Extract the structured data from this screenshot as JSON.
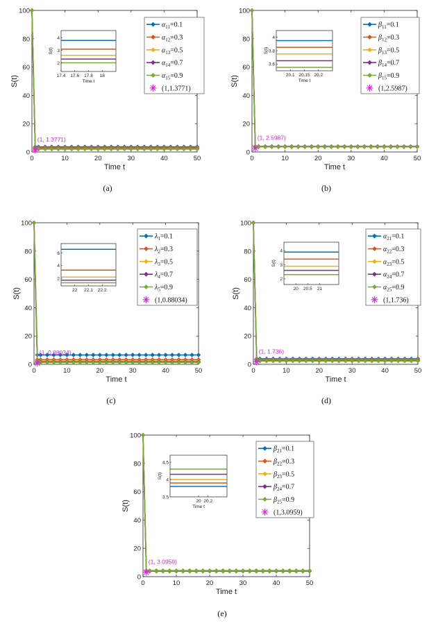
{
  "colors": {
    "s1": "#0072BD",
    "s2": "#D95319",
    "s3": "#EDB120",
    "s4": "#7E2F8E",
    "s5": "#77AC30",
    "marker": "#E020E0"
  },
  "chart_data": [
    {
      "type": "line",
      "caption": "(a)",
      "xlabel": "Time t",
      "ylabel": "S(t)",
      "xlim": [
        0,
        50
      ],
      "ylim": [
        0,
        100
      ],
      "xticks": [
        0,
        10,
        20,
        30,
        40,
        50
      ],
      "yticks": [
        0,
        20,
        40,
        60,
        80,
        100
      ],
      "series": [
        {
          "sym": "α",
          "sub": "11",
          "val": "=0.1",
          "final": 3.6
        },
        {
          "sym": "α",
          "sub": "12",
          "val": "=0.3",
          "final": 3.0
        },
        {
          "sym": "α",
          "sub": "13",
          "val": "=0.5",
          "final": 2.6
        },
        {
          "sym": "α",
          "sub": "14",
          "val": "=0.7",
          "final": 2.3
        },
        {
          "sym": "α",
          "sub": "15",
          "val": "=0.9",
          "final": 2.0
        }
      ],
      "point": {
        "x": 1,
        "y": 1.3771,
        "legend": "(1,1.3771)",
        "annotation": "(1, 1.3771)"
      },
      "inset": {
        "xlim": [
          17.4,
          18.2
        ],
        "ylim": [
          1.3,
          4.6
        ],
        "xticks": [
          "17.4",
          "17.6",
          "17.8",
          "18"
        ],
        "xtickvals": [
          17.4,
          17.6,
          17.8,
          18.0
        ],
        "yticks": [
          "2",
          "3",
          "4"
        ],
        "ytickvals": [
          2,
          3,
          4
        ],
        "xlabel": "Time t",
        "ylabel": "S(t)",
        "levels": [
          3.8,
          3.1,
          2.6,
          2.3,
          2.0
        ]
      }
    },
    {
      "type": "line",
      "caption": "(b)",
      "xlabel": "Time t",
      "ylabel": "S(t)",
      "xlim": [
        0,
        50
      ],
      "ylim": [
        0,
        100
      ],
      "xticks": [
        0,
        10,
        20,
        30,
        40,
        50
      ],
      "yticks": [
        0,
        20,
        40,
        60,
        80,
        100
      ],
      "series": [
        {
          "sym": "β",
          "sub": "11",
          "val": "=0.1",
          "final": 3.95
        },
        {
          "sym": "β",
          "sub": "12",
          "val": "=0.3",
          "final": 3.85
        },
        {
          "sym": "β",
          "sub": "13",
          "val": "=0.5",
          "final": 3.75
        },
        {
          "sym": "β",
          "sub": "14",
          "val": "=0.7",
          "final": 3.65
        },
        {
          "sym": "β",
          "sub": "15",
          "val": "=0.9",
          "final": 3.55
        }
      ],
      "point": {
        "x": 1,
        "y": 2.5987,
        "legend": "(1,2.5987)",
        "annotation": "(1, 2.5987)"
      },
      "inset": {
        "xlim": [
          20.05,
          20.25
        ],
        "ylim": [
          3.5,
          4.1
        ],
        "xticks": [
          "20.1",
          "20.15",
          "20.2"
        ],
        "xtickvals": [
          20.1,
          20.15,
          20.2
        ],
        "yticks": [
          "3.6",
          "3.8",
          "4"
        ],
        "ytickvals": [
          3.6,
          3.8,
          4.0
        ],
        "xlabel": "Time t",
        "ylabel": "S(t)",
        "levels": [
          3.95,
          3.85,
          3.75,
          3.65,
          3.55
        ]
      }
    },
    {
      "type": "line",
      "caption": "(c)",
      "xlabel": "Time t",
      "ylabel": "S(t)",
      "xlim": [
        0,
        50
      ],
      "ylim": [
        0,
        100
      ],
      "xticks": [
        0,
        10,
        20,
        30,
        40,
        50
      ],
      "yticks": [
        0,
        20,
        40,
        60,
        80,
        100
      ],
      "series": [
        {
          "sym": "λ",
          "sub": "1",
          "val": "=0.1",
          "final": 6.6
        },
        {
          "sym": "λ",
          "sub": "2",
          "val": "=0.3",
          "final": 3.3
        },
        {
          "sym": "λ",
          "sub": "3",
          "val": "=0.5",
          "final": 2.2
        },
        {
          "sym": "λ",
          "sub": "4",
          "val": "=0.7",
          "final": 1.7
        },
        {
          "sym": "λ",
          "sub": "5",
          "val": "=0.9",
          "final": 1.3
        }
      ],
      "point": {
        "x": 1,
        "y": 0.88034,
        "legend": "(1,0.88034)",
        "annotation": "(1, 0.88034)"
      },
      "inset": {
        "xlim": [
          21.9,
          22.3
        ],
        "ylim": [
          0.8,
          7.5
        ],
        "xticks": [
          "22",
          "22.1",
          "22.2"
        ],
        "xtickvals": [
          22.0,
          22.1,
          22.2
        ],
        "yticks": [
          "2",
          "4",
          "6"
        ],
        "ytickvals": [
          2,
          4,
          6
        ],
        "xlabel": "",
        "ylabel": "",
        "levels": [
          6.6,
          3.3,
          2.2,
          1.7,
          1.3
        ]
      }
    },
    {
      "type": "line",
      "caption": "(d)",
      "xlabel": "Time t",
      "ylabel": "S(t)",
      "xlim": [
        0,
        50
      ],
      "ylim": [
        0,
        100
      ],
      "xticks": [
        0,
        10,
        20,
        30,
        40,
        50
      ],
      "yticks": [
        0,
        20,
        40,
        60,
        80,
        100
      ],
      "series": [
        {
          "sym": "α",
          "sub": "21",
          "val": "=0.1",
          "final": 3.9
        },
        {
          "sym": "α",
          "sub": "22",
          "val": "=0.3",
          "final": 3.4
        },
        {
          "sym": "α",
          "sub": "23",
          "val": "=0.5",
          "final": 2.9
        },
        {
          "sym": "α",
          "sub": "24",
          "val": "=0.7",
          "final": 2.6
        },
        {
          "sym": "α",
          "sub": "25",
          "val": "=0.9",
          "final": 2.3
        }
      ],
      "point": {
        "x": 1,
        "y": 1.736,
        "legend": "(1,1.736)",
        "annotation": "(1, 1.736)"
      },
      "inset": {
        "xlim": [
          19.5,
          21.8
        ],
        "ylim": [
          1.6,
          4.6
        ],
        "xticks": [
          "20",
          "20.5",
          "21"
        ],
        "xtickvals": [
          20,
          20.5,
          21
        ],
        "yticks": [
          "2",
          "3",
          "4"
        ],
        "ytickvals": [
          2,
          3,
          4
        ],
        "xlabel": "",
        "ylabel": "S(t)",
        "levels": [
          3.9,
          3.4,
          2.9,
          2.6,
          2.3
        ]
      }
    },
    {
      "type": "line",
      "caption": "(e)",
      "xlabel": "Time t",
      "ylabel": "S(t)",
      "xlim": [
        0,
        50
      ],
      "ylim": [
        0,
        100
      ],
      "xticks": [
        0,
        10,
        20,
        30,
        40,
        50
      ],
      "yticks": [
        0,
        20,
        40,
        60,
        80,
        100
      ],
      "series": [
        {
          "sym": "β",
          "sub": "21",
          "val": "=0.1",
          "final": 3.8
        },
        {
          "sym": "β",
          "sub": "22",
          "val": "=0.3",
          "final": 3.9
        },
        {
          "sym": "β",
          "sub": "23",
          "val": "=0.5",
          "final": 4.0
        },
        {
          "sym": "β",
          "sub": "24",
          "val": "=0.7",
          "final": 4.15
        },
        {
          "sym": "β",
          "sub": "25",
          "val": "=0.9",
          "final": 4.3
        }
      ],
      "point": {
        "x": 1,
        "y": 3.0959,
        "legend": "(1,3.0959)",
        "annotation": "(1, 3.0959)"
      },
      "inset": {
        "xlim": [
          19.4,
          20.6
        ],
        "ylim": [
          3.5,
          4.7
        ],
        "xticks": [
          "20",
          "20.2"
        ],
        "xtickvals": [
          20.0,
          20.2
        ],
        "yticks": [
          "3.5",
          "4",
          "4.5"
        ],
        "ytickvals": [
          3.5,
          4.0,
          4.5
        ],
        "xlabel": "Time t",
        "ylabel": "S(t)",
        "levels": [
          3.8,
          3.9,
          4.0,
          4.15,
          4.3
        ]
      }
    }
  ]
}
